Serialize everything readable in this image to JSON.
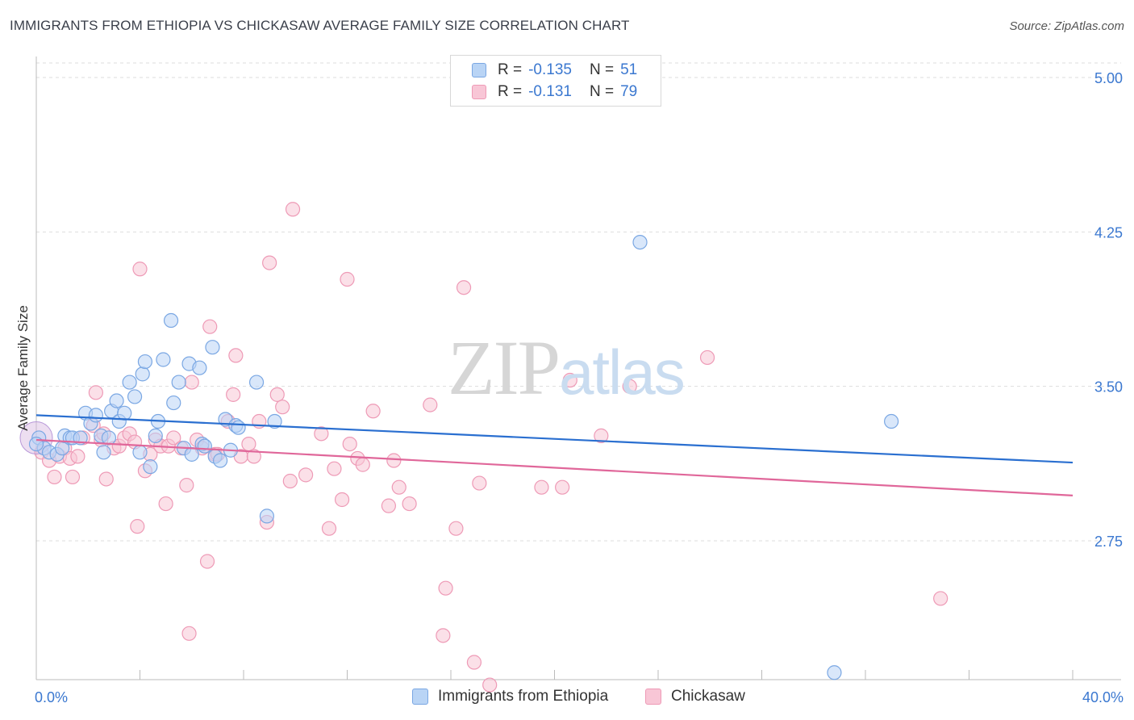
{
  "header": {
    "title": "IMMIGRANTS FROM ETHIOPIA VS CHICKASAW AVERAGE FAMILY SIZE CORRELATION CHART",
    "source": "Source: ZipAtlas.com"
  },
  "watermark": {
    "zip": "ZIP",
    "atlas": "atlas"
  },
  "legend": {
    "rows": [
      {
        "r_label": "R =",
        "r_value": "-0.135",
        "n_label": "N =",
        "n_value": "51"
      },
      {
        "r_label": "R =",
        "r_value": "-0.131",
        "n_label": "N =",
        "n_value": "79"
      }
    ]
  },
  "colors": {
    "blue_fill": "#b9d4f5",
    "blue_stroke": "#7aa7e3",
    "blue_line": "#2a6fd0",
    "pink_fill": "#f8c6d6",
    "pink_stroke": "#ee9ab6",
    "pink_line": "#e0679a",
    "tick_label": "#3b78d0",
    "grid": "#dddddd"
  },
  "chart_data": {
    "type": "scatter",
    "title": "IMMIGRANTS FROM ETHIOPIA VS CHICKASAW AVERAGE FAMILY SIZE CORRELATION CHART",
    "xlabel": "",
    "ylabel": "Average Family Size",
    "xlim": [
      0,
      40
    ],
    "ylim": [
      2.0,
      5.1
    ],
    "x_tick_labels": [
      "0.0%",
      "40.0%"
    ],
    "y_ticks": [
      2.75,
      3.5,
      4.25,
      5.0
    ],
    "y_tick_labels": [
      "2.75",
      "3.50",
      "4.25",
      "5.00"
    ],
    "grid": true,
    "legend_placement": "bottom",
    "series": [
      {
        "name": "Immigrants from Ethiopia",
        "color": "#7aa7e3",
        "trend": {
          "x": [
            0,
            40
          ],
          "y": [
            3.36,
            3.13
          ]
        },
        "points": [
          [
            0.1,
            3.25
          ],
          [
            0.3,
            3.2
          ],
          [
            0.5,
            3.18
          ],
          [
            0.8,
            3.17
          ],
          [
            1.0,
            3.2
          ],
          [
            1.1,
            3.26
          ],
          [
            1.3,
            3.25
          ],
          [
            1.4,
            3.25
          ],
          [
            1.7,
            3.25
          ],
          [
            1.9,
            3.37
          ],
          [
            2.1,
            3.32
          ],
          [
            2.3,
            3.36
          ],
          [
            2.5,
            3.26
          ],
          [
            2.6,
            3.18
          ],
          [
            2.8,
            3.25
          ],
          [
            2.9,
            3.38
          ],
          [
            3.1,
            3.43
          ],
          [
            3.2,
            3.33
          ],
          [
            3.4,
            3.37
          ],
          [
            3.6,
            3.52
          ],
          [
            3.8,
            3.45
          ],
          [
            4.0,
            3.18
          ],
          [
            4.1,
            3.56
          ],
          [
            4.2,
            3.62
          ],
          [
            4.4,
            3.11
          ],
          [
            4.6,
            3.26
          ],
          [
            4.7,
            3.33
          ],
          [
            4.9,
            3.63
          ],
          [
            5.2,
            3.82
          ],
          [
            5.3,
            3.42
          ],
          [
            5.5,
            3.52
          ],
          [
            5.7,
            3.2
          ],
          [
            5.9,
            3.61
          ],
          [
            6.0,
            3.17
          ],
          [
            6.3,
            3.59
          ],
          [
            6.4,
            3.22
          ],
          [
            6.5,
            3.21
          ],
          [
            6.8,
            3.69
          ],
          [
            6.9,
            3.16
          ],
          [
            7.1,
            3.14
          ],
          [
            7.3,
            3.34
          ],
          [
            7.5,
            3.19
          ],
          [
            7.7,
            3.31
          ],
          [
            7.8,
            3.3
          ],
          [
            8.5,
            3.52
          ],
          [
            8.9,
            2.87
          ],
          [
            9.2,
            3.33
          ],
          [
            23.3,
            4.2
          ],
          [
            30.8,
            2.11
          ],
          [
            33.0,
            3.33
          ],
          [
            0.0,
            3.22
          ]
        ]
      },
      {
        "name": "Chickasaw",
        "color": "#ee9ab6",
        "trend": {
          "x": [
            0,
            40
          ],
          "y": [
            3.24,
            2.97
          ]
        },
        "points": [
          [
            0.2,
            3.18
          ],
          [
            0.5,
            3.14
          ],
          [
            0.7,
            3.06
          ],
          [
            0.9,
            3.16
          ],
          [
            1.1,
            3.2
          ],
          [
            1.3,
            3.15
          ],
          [
            1.4,
            3.06
          ],
          [
            1.6,
            3.16
          ],
          [
            1.8,
            3.25
          ],
          [
            2.2,
            3.31
          ],
          [
            2.3,
            3.47
          ],
          [
            2.5,
            3.24
          ],
          [
            2.6,
            3.27
          ],
          [
            2.7,
            3.05
          ],
          [
            3.0,
            3.2
          ],
          [
            3.2,
            3.21
          ],
          [
            3.4,
            3.25
          ],
          [
            3.6,
            3.27
          ],
          [
            3.8,
            3.23
          ],
          [
            3.9,
            2.82
          ],
          [
            4.0,
            4.07
          ],
          [
            4.2,
            3.09
          ],
          [
            4.4,
            3.17
          ],
          [
            4.6,
            3.24
          ],
          [
            4.8,
            3.21
          ],
          [
            5.0,
            2.93
          ],
          [
            5.1,
            3.21
          ],
          [
            5.3,
            3.25
          ],
          [
            5.6,
            3.2
          ],
          [
            5.8,
            3.02
          ],
          [
            5.9,
            2.3
          ],
          [
            6.0,
            3.52
          ],
          [
            6.2,
            3.24
          ],
          [
            6.4,
            3.2
          ],
          [
            6.6,
            2.65
          ],
          [
            6.7,
            3.79
          ],
          [
            6.9,
            3.17
          ],
          [
            7.0,
            3.17
          ],
          [
            7.4,
            3.33
          ],
          [
            7.6,
            3.46
          ],
          [
            7.7,
            3.65
          ],
          [
            7.9,
            3.16
          ],
          [
            8.2,
            3.22
          ],
          [
            8.4,
            3.16
          ],
          [
            8.6,
            3.33
          ],
          [
            8.9,
            2.84
          ],
          [
            9.0,
            4.1
          ],
          [
            9.3,
            3.46
          ],
          [
            9.5,
            3.4
          ],
          [
            9.8,
            3.04
          ],
          [
            9.9,
            4.36
          ],
          [
            10.4,
            3.07
          ],
          [
            11.0,
            3.27
          ],
          [
            11.3,
            2.81
          ],
          [
            11.5,
            3.1
          ],
          [
            11.8,
            2.95
          ],
          [
            12.0,
            4.02
          ],
          [
            12.1,
            3.22
          ],
          [
            12.4,
            3.15
          ],
          [
            12.6,
            3.12
          ],
          [
            13.0,
            3.38
          ],
          [
            13.6,
            2.92
          ],
          [
            13.8,
            3.14
          ],
          [
            14.0,
            3.01
          ],
          [
            14.4,
            2.93
          ],
          [
            15.2,
            3.41
          ],
          [
            15.7,
            2.29
          ],
          [
            15.8,
            2.52
          ],
          [
            16.2,
            2.81
          ],
          [
            16.5,
            3.98
          ],
          [
            16.9,
            2.16
          ],
          [
            17.1,
            3.03
          ],
          [
            17.5,
            2.05
          ],
          [
            19.5,
            3.01
          ],
          [
            20.3,
            3.01
          ],
          [
            20.6,
            3.53
          ],
          [
            21.8,
            3.26
          ],
          [
            22.9,
            3.5
          ],
          [
            25.9,
            3.64
          ],
          [
            34.9,
            2.47
          ]
        ]
      }
    ]
  },
  "bottom_legend": [
    {
      "label": "Immigrants from Ethiopia"
    },
    {
      "label": "Chickasaw"
    }
  ]
}
